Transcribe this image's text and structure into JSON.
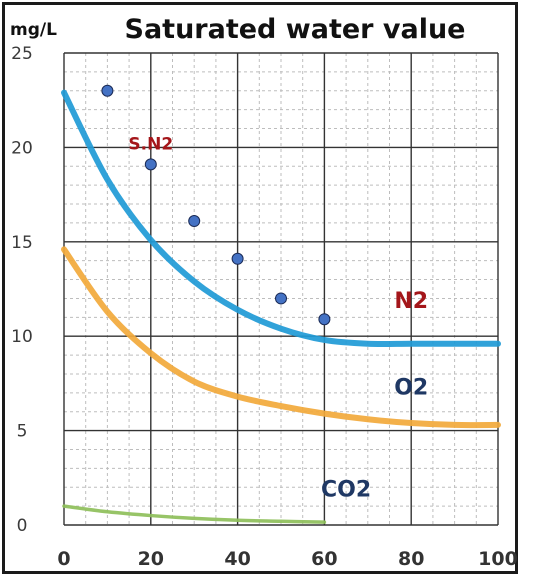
{
  "chart_data": {
    "type": "line",
    "title": "Saturated water value",
    "ylabel": "mg/L",
    "xlabel": "",
    "xlim": [
      0,
      100
    ],
    "ylim": [
      0,
      25
    ],
    "x_ticks": [
      "0",
      "20",
      "40",
      "60",
      "80",
      "100"
    ],
    "y_ticks": [
      "0",
      "5",
      "10",
      "15",
      "20",
      "25"
    ],
    "grid": true,
    "colors": {
      "N2": "#1f9ad6",
      "O2": "#f2a93b",
      "CO2": "#8ebf5a",
      "S.N2": "#4472c4",
      "grid_major": "#333333",
      "grid_minor": "#bdbdbd",
      "n2_label": "#a4161a",
      "o2_label": "#1f3864",
      "co2_label": "#1f3864"
    },
    "series": [
      {
        "name": "N2",
        "kind": "line",
        "x": [
          0,
          10,
          20,
          30,
          40,
          50,
          60,
          70,
          80,
          90,
          100
        ],
        "y": [
          22.9,
          18.3,
          15.1,
          12.9,
          11.4,
          10.4,
          9.8,
          9.6,
          9.6,
          9.6,
          9.6
        ]
      },
      {
        "name": "O2",
        "kind": "line",
        "x": [
          0,
          10,
          20,
          30,
          40,
          50,
          60,
          70,
          80,
          90,
          100
        ],
        "y": [
          14.6,
          11.3,
          9.1,
          7.6,
          6.8,
          6.3,
          5.9,
          5.6,
          5.4,
          5.3,
          5.3
        ]
      },
      {
        "name": "CO2",
        "kind": "line",
        "x": [
          0,
          10,
          20,
          30,
          40,
          50,
          60
        ],
        "y": [
          1.0,
          0.7,
          0.5,
          0.35,
          0.25,
          0.2,
          0.15
        ]
      },
      {
        "name": "S.N2",
        "kind": "scatter",
        "x": [
          10,
          20,
          30,
          40,
          50,
          60
        ],
        "y": [
          23.0,
          19.1,
          16.1,
          14.1,
          12.0,
          10.9
        ]
      }
    ],
    "annotations": [
      {
        "text": "N2",
        "x": 80,
        "y": 11.5,
        "series": "N2"
      },
      {
        "text": "O2",
        "x": 80,
        "y": 6.9,
        "series": "O2"
      },
      {
        "text": "CO2",
        "x": 65,
        "y": 1.5,
        "series": "CO2"
      },
      {
        "text": "S.N2",
        "x": 20,
        "y": 19.9,
        "series": "S.N2"
      }
    ]
  }
}
